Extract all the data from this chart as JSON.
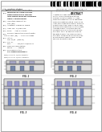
{
  "bg_color": "#ffffff",
  "border_color": "#666666",
  "barcode_color": "#111111",
  "text_color": "#222222",
  "text_light": "#555555",
  "diagram_line": "#444444",
  "diagram_fill_body": "#e8e8e8",
  "diagram_fill_dark": "#aaaaaa",
  "diagram_fill_trench": "#8899aa",
  "diagram_fill_gate": "#99aacc",
  "diagram_fill_cap": "#cccccc",
  "fig_label_color": "#333333"
}
